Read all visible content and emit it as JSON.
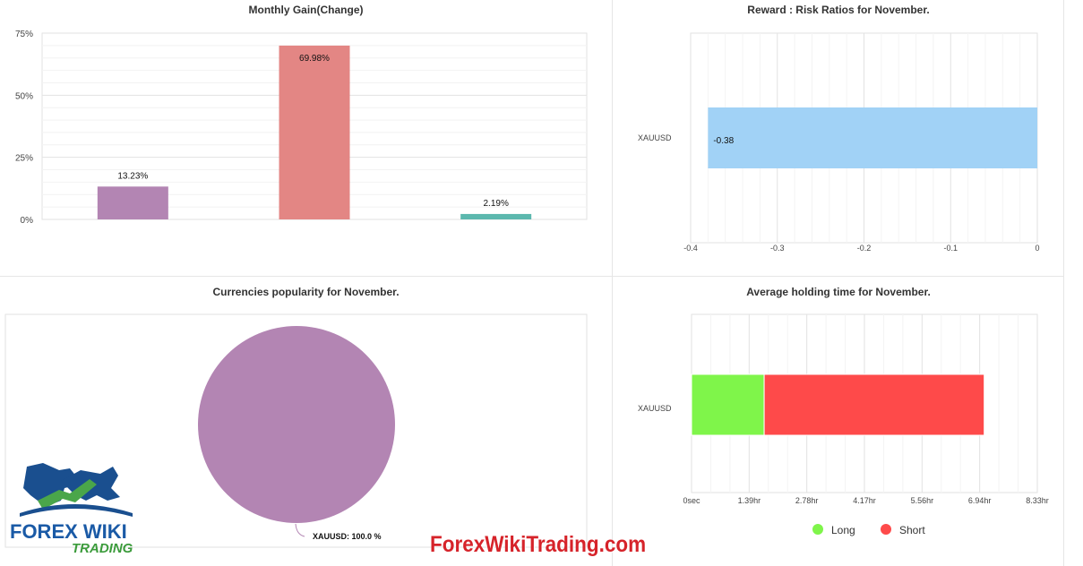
{
  "charts": {
    "monthly_gain": {
      "title": "Monthly Gain(Change)"
    },
    "reward_risk": {
      "title": "Reward : Risk Ratios for November."
    },
    "currencies": {
      "title": "Currencies popularity for November."
    },
    "holding_time": {
      "title": "Average holding time for November."
    }
  },
  "chart_data": [
    {
      "type": "bar",
      "title": "Monthly Gain(Change)",
      "yticks": [
        "0%",
        "25%",
        "50%",
        "75%"
      ],
      "ylim": [
        0,
        75
      ],
      "values": [
        13.23,
        69.98,
        2.19
      ],
      "data_labels": [
        "13.23%",
        "69.98%",
        "2.19%"
      ],
      "colors": [
        "#b385b3",
        "#e38684",
        "#5cb8ae"
      ],
      "grid": true
    },
    {
      "type": "bar",
      "orientation": "horizontal",
      "title": "Reward : Risk Ratios for November.",
      "categories": [
        "XAUUSD"
      ],
      "values": [
        -0.38
      ],
      "data_labels": [
        "-0.38"
      ],
      "xticks": [
        "-0.4",
        "-0.3",
        "-0.2",
        "-0.1",
        "0"
      ],
      "xlim": [
        -0.4,
        0
      ],
      "colors": [
        "#a1d2f6"
      ],
      "grid": true
    },
    {
      "type": "pie",
      "title": "Currencies popularity for November.",
      "slices": [
        {
          "label": "XAUUSD: 100.0 %",
          "value": 100.0
        }
      ],
      "colors": [
        "#b385b3"
      ]
    },
    {
      "type": "bar",
      "orientation": "horizontal",
      "stacked": true,
      "title": "Average holding time for November.",
      "categories": [
        "XAUUSD"
      ],
      "series": [
        {
          "name": "Long",
          "values": [
            1.75
          ]
        },
        {
          "name": "Short",
          "values": [
            5.3
          ]
        }
      ],
      "xticks": [
        "0sec",
        "1.39hr",
        "2.78hr",
        "4.17hr",
        "5.56hr",
        "6.94hr",
        "8.33hr"
      ],
      "xlim": [
        0,
        8.33
      ],
      "colors": [
        "#7ff54a",
        "#fe4a4a"
      ],
      "legend": "bottom",
      "grid": true
    }
  ],
  "watermark": {
    "text": "ForexWikiTrading.com",
    "logo_top": "FOREX WIKI",
    "logo_bottom": "TRADING"
  }
}
